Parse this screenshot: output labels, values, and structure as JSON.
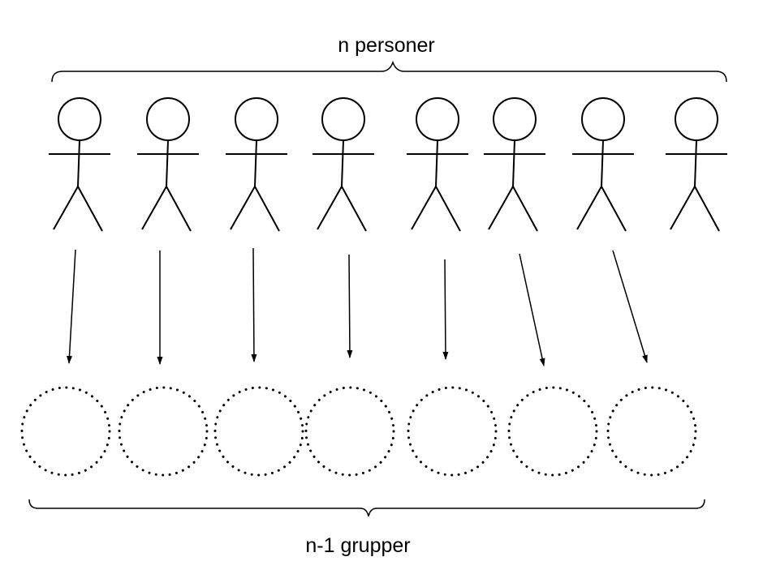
{
  "top_label": "n personer",
  "bottom_label": "n-1  grupper",
  "persons": [
    {
      "id": 1
    },
    {
      "id": 2
    },
    {
      "id": 3
    },
    {
      "id": 4
    },
    {
      "id": 5
    },
    {
      "id": 6
    },
    {
      "id": 7
    },
    {
      "id": 8
    }
  ],
  "groups": [
    {
      "id": 1
    },
    {
      "id": 2
    },
    {
      "id": 3
    },
    {
      "id": 4
    },
    {
      "id": 5
    },
    {
      "id": 6
    },
    {
      "id": 7
    }
  ],
  "colors": {
    "stroke": "#000000",
    "background": "#ffffff"
  }
}
